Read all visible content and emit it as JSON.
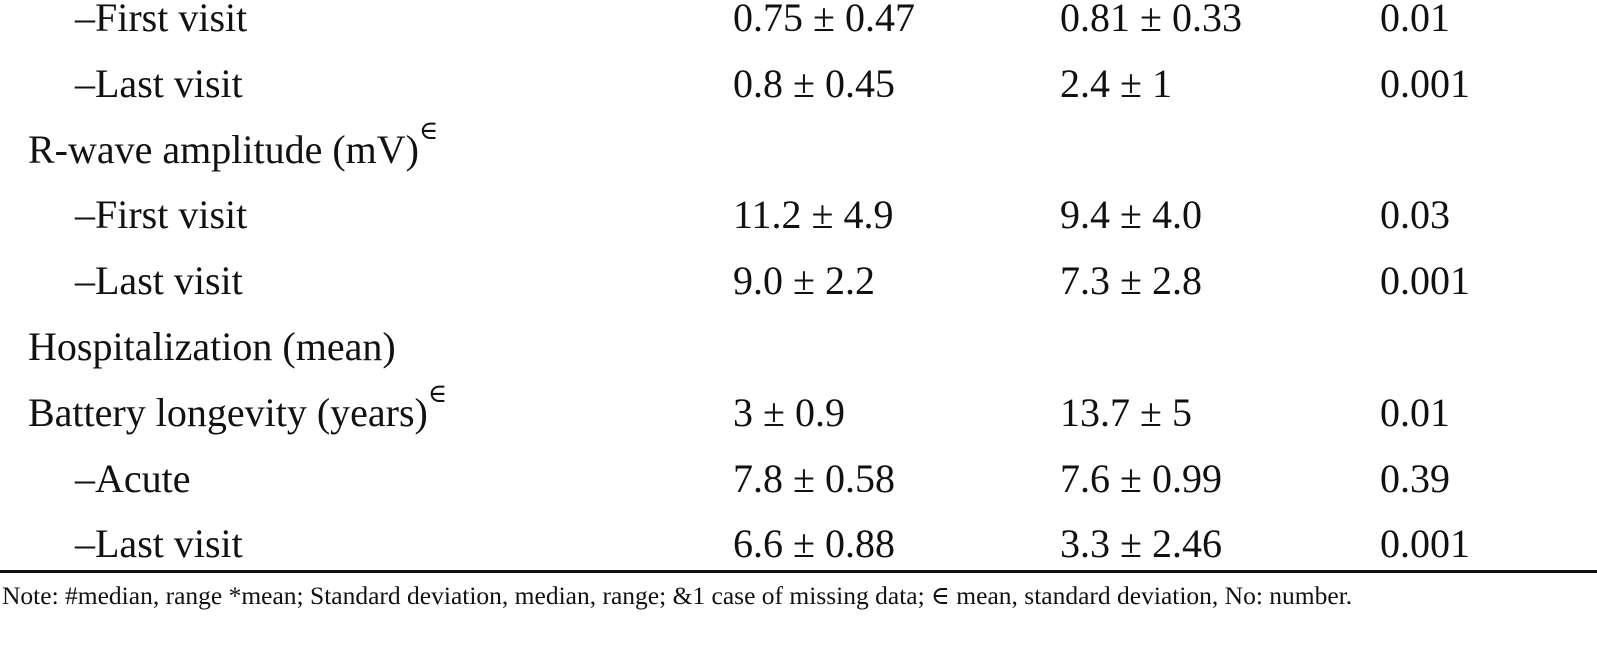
{
  "table": {
    "rows": [
      {
        "label": "–First visit",
        "cells": [
          "0.75 ± 0.47",
          "0.81 ± 0.33",
          "0.01"
        ]
      },
      {
        "label": "–Last visit",
        "cells": [
          "0.8 ± 0.45",
          "2.4 ± 1",
          "0.001"
        ]
      },
      {
        "label": "R-wave amplitude (mV)",
        "sup": "∈"
      },
      {
        "label": "–First visit",
        "cells": [
          "11.2 ± 4.9",
          "9.4 ± 4.0",
          "0.03"
        ]
      },
      {
        "label": "–Last visit",
        "cells": [
          "9.0 ± 2.2",
          "7.3 ± 2.8",
          "0.001"
        ]
      },
      {
        "label": "Hospitalization (mean)"
      },
      {
        "label": "Battery longevity (years)",
        "sup": "∈",
        "cells": [
          "3 ± 0.9",
          "13.7 ± 5",
          "0.01"
        ]
      },
      {
        "label": "–Acute",
        "cells": [
          "7.8 ± 0.58",
          "7.6 ± 0.99",
          "0.39"
        ]
      },
      {
        "label": "–Last visit",
        "cells": [
          "6.6 ± 0.88",
          "3.3 ± 2.46",
          "0.001"
        ]
      }
    ]
  },
  "note": "Note: #median, range *mean; Standard deviation, median, range; &1 case of missing data; ∈ mean, standard deviation, No: number."
}
